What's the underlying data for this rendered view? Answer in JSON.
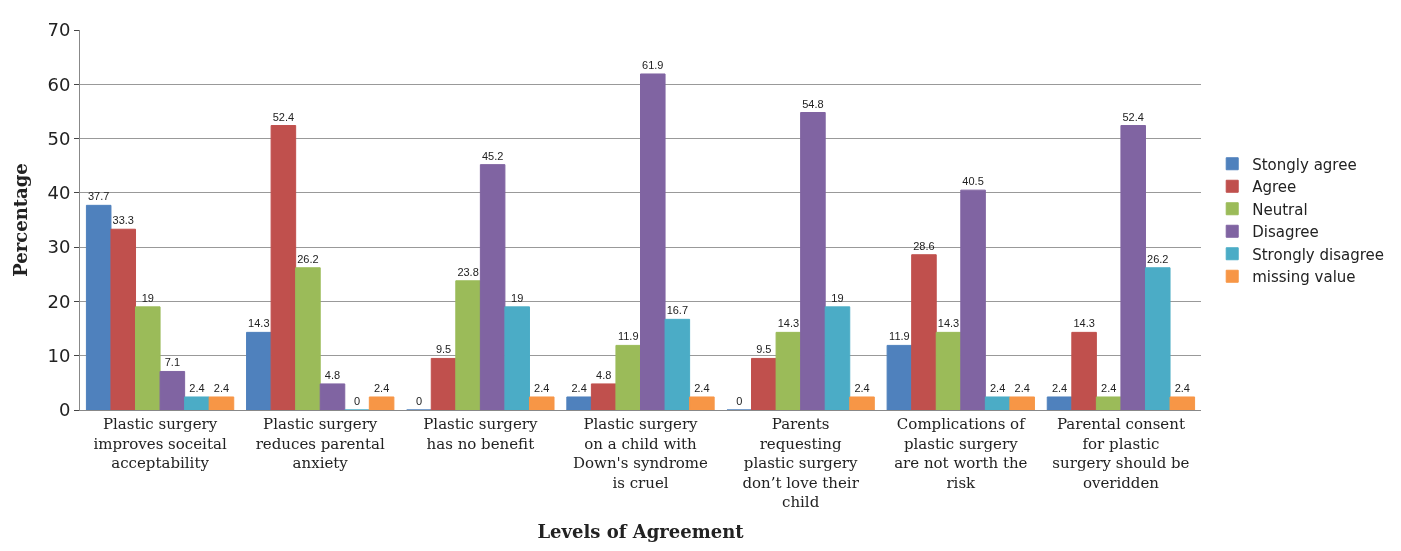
{
  "chart_data": {
    "type": "bar",
    "xlabel": "Levels of Agreement",
    "ylabel": "Percentage",
    "categories": [
      "Plastic surgery improves soceital acceptability",
      "Plastic surgery reduces parental anxiety",
      "Plastic surgery has no benefit",
      "Plastic surgery on a child with Down's syndrome is cruel",
      "Parents requesting plastic surgery don’t love their child",
      "Complications of plastic surgery are not worth the risk",
      "Parental consent for plastic surgery should be overidden"
    ],
    "series": [
      {
        "name": "Stongly agree",
        "color": "#4f81bd",
        "values": [
          37.7,
          14.3,
          0,
          2.4,
          0,
          11.9,
          2.4
        ]
      },
      {
        "name": "Agree",
        "color": "#c0504d",
        "values": [
          33.3,
          52.4,
          9.5,
          4.8,
          9.5,
          28.6,
          14.3
        ]
      },
      {
        "name": "Neutral",
        "color": "#9bbb59",
        "values": [
          19,
          26.2,
          23.8,
          11.9,
          14.3,
          14.3,
          2.4
        ]
      },
      {
        "name": "Disagree",
        "color": "#8064a2",
        "values": [
          7.1,
          4.8,
          45.2,
          61.9,
          54.8,
          40.5,
          52.4
        ]
      },
      {
        "name": "Strongly disagree",
        "color": "#4bacc6",
        "values": [
          2.4,
          0,
          19,
          16.7,
          19,
          2.4,
          26.2
        ]
      },
      {
        "name": "missing value",
        "color": "#f79646",
        "values": [
          2.4,
          2.4,
          2.4,
          2.4,
          2.4,
          2.4,
          2.4
        ]
      }
    ],
    "ylim": [
      0,
      70
    ],
    "yticks": [
      0,
      10,
      20,
      30,
      40,
      50,
      60,
      70
    ],
    "grid": "y",
    "legend": "right",
    "data_labels": true
  }
}
